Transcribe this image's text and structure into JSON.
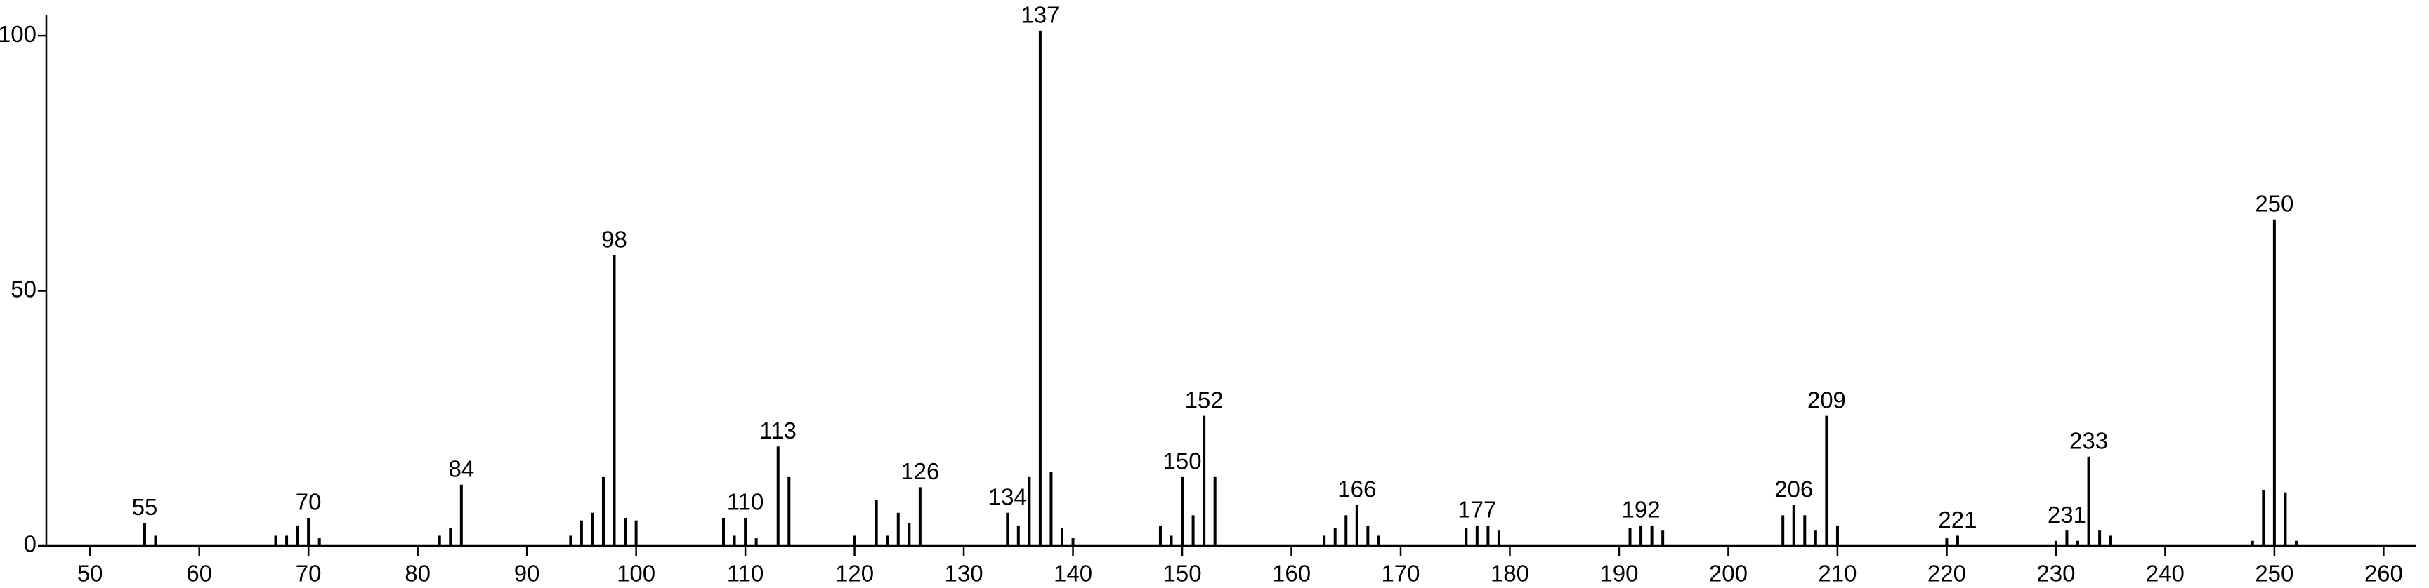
{
  "chart_data": {
    "type": "bar",
    "color": "#000000",
    "x": [
      55,
      56,
      67,
      68,
      69,
      70,
      71,
      82,
      83,
      84,
      94,
      95,
      96,
      97,
      98,
      99,
      100,
      108,
      109,
      110,
      111,
      113,
      114,
      120,
      122,
      123,
      124,
      125,
      126,
      134,
      135,
      136,
      137,
      138,
      139,
      140,
      148,
      149,
      150,
      151,
      152,
      153,
      163,
      164,
      165,
      166,
      167,
      168,
      176,
      177,
      178,
      179,
      191,
      192,
      193,
      194,
      205,
      206,
      207,
      208,
      209,
      210,
      220,
      221,
      230,
      231,
      232,
      233,
      234,
      235,
      248,
      249,
      250,
      251,
      252
    ],
    "values": [
      4.5,
      2,
      2,
      2,
      4,
      5.5,
      1.5,
      2,
      3.5,
      12,
      2,
      5,
      6.5,
      13.5,
      57,
      5.5,
      5,
      5.5,
      2,
      5.5,
      1.5,
      19.5,
      13.5,
      2,
      9,
      2,
      6.5,
      4.5,
      11.5,
      6.5,
      4,
      13.5,
      101,
      14.5,
      3.5,
      1.5,
      4,
      2,
      13.5,
      6,
      25.5,
      13.5,
      2,
      3.5,
      6,
      8,
      4,
      2,
      3.5,
      4,
      4,
      3,
      3.5,
      4,
      4,
      3,
      6,
      8,
      6,
      3,
      25.5,
      4,
      1.5,
      2,
      1,
      3,
      1,
      17.5,
      3,
      2,
      1,
      11,
      64,
      10.5,
      1
    ],
    "peak_labels": [
      55,
      null,
      null,
      null,
      null,
      70,
      null,
      null,
      null,
      84,
      null,
      null,
      null,
      null,
      98,
      null,
      null,
      null,
      null,
      110,
      null,
      113,
      null,
      null,
      null,
      null,
      null,
      null,
      126,
      134,
      null,
      null,
      137,
      null,
      null,
      null,
      null,
      null,
      150,
      null,
      152,
      null,
      null,
      null,
      null,
      166,
      null,
      null,
      null,
      177,
      null,
      null,
      null,
      192,
      null,
      null,
      null,
      206,
      null,
      null,
      209,
      null,
      null,
      221,
      null,
      231,
      null,
      233,
      null,
      null,
      null,
      null,
      250,
      null,
      null
    ],
    "xlim": [
      46,
      263
    ],
    "ylim": [
      0,
      104
    ],
    "xticks": [
      50,
      60,
      70,
      80,
      90,
      100,
      110,
      120,
      130,
      140,
      150,
      160,
      170,
      180,
      190,
      200,
      210,
      220,
      230,
      240,
      250,
      260
    ],
    "yticks": [
      0,
      50,
      100
    ]
  }
}
